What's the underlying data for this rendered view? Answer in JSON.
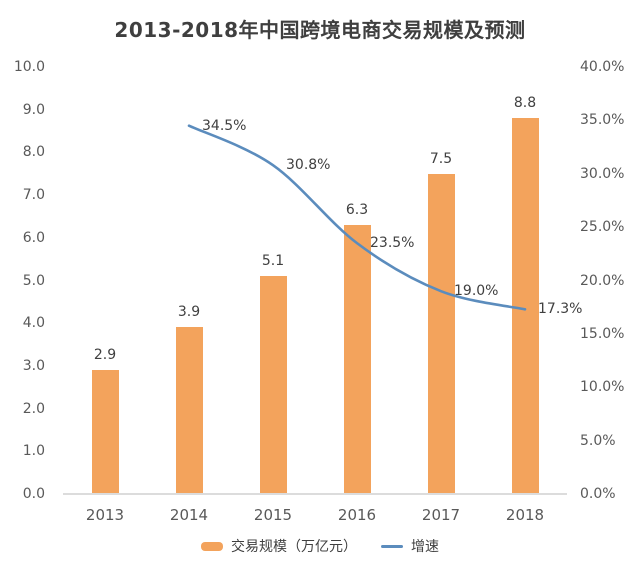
{
  "chart": {
    "title": "2013-2018年中国跨境电商交易规模及预测",
    "legend": {
      "bar_label": "交易规模（万亿元）",
      "line_label": "增速"
    }
  },
  "chart_data": {
    "type": "bar+line",
    "title": "2013-2018年中国跨境电商交易规模及预测",
    "categories": [
      "2013",
      "2014",
      "2015",
      "2016",
      "2017",
      "2018"
    ],
    "series": [
      {
        "name": "交易规模（万亿元）",
        "type": "bar",
        "axis": "left",
        "values": [
          2.9,
          3.9,
          5.1,
          6.3,
          7.5,
          8.8
        ],
        "labels": [
          "2.9",
          "3.9",
          "5.1",
          "6.3",
          "7.5",
          "8.8"
        ]
      },
      {
        "name": "增速",
        "type": "line",
        "axis": "right",
        "values": [
          null,
          34.5,
          30.8,
          23.5,
          19.0,
          17.3
        ],
        "labels": [
          null,
          "34.5%",
          "30.8%",
          "23.5%",
          "19.0%",
          "17.3%"
        ]
      }
    ],
    "left_axis": {
      "min": 0,
      "max": 10,
      "ticks": [
        "0.0",
        "1.0",
        "2.0",
        "3.0",
        "4.0",
        "5.0",
        "6.0",
        "7.0",
        "8.0",
        "9.0",
        "10.0"
      ]
    },
    "right_axis": {
      "min": 0,
      "max": 40,
      "ticks": [
        "0.0%",
        "5.0%",
        "10.0%",
        "15.0%",
        "20.0%",
        "25.0%",
        "30.0%",
        "35.0%",
        "40.0%"
      ]
    },
    "grid": false,
    "legend_position": "bottom",
    "colors": {
      "bar": "#f3a35c",
      "line": "#5b8cbd",
      "title_text": "#3f3f3f",
      "tick_text": "#595959",
      "label_text": "#404040",
      "axis_line": "#dcdcdc",
      "background": "#ffffff"
    }
  }
}
